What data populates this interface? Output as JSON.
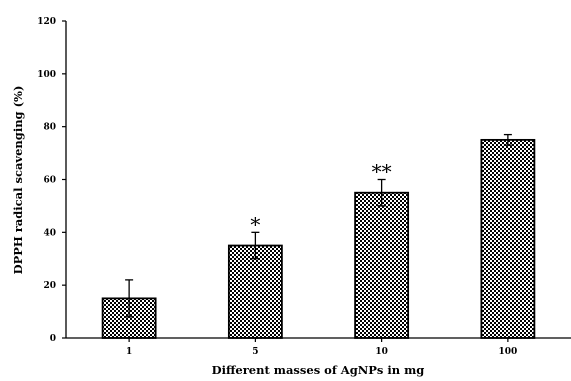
{
  "chart_data": {
    "type": "bar",
    "title": "",
    "xlabel": "Different masses of AgNPs in mg",
    "ylabel": "DPPH radical scavenging (%)",
    "categories": [
      "1",
      "5",
      "10",
      "100"
    ],
    "values": [
      15,
      35,
      55,
      75
    ],
    "error": [
      7,
      5,
      5,
      2
    ],
    "annotations": [
      "",
      "*",
      "**",
      ""
    ],
    "ylim": [
      0,
      120
    ],
    "yticks": [
      "0",
      "20",
      "40",
      "60",
      "80",
      "100",
      "120"
    ],
    "grid": false,
    "legend": "none",
    "bar_fill": "checkerboard",
    "colors": {
      "bar_dark": "#000000",
      "bar_light": "#ffffff",
      "axis": "#000000"
    }
  }
}
